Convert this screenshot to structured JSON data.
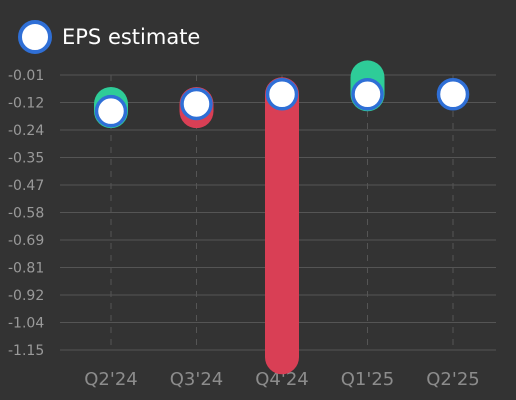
{
  "chart_data": {
    "type": "dot-range",
    "legend": {
      "label": "EPS estimate",
      "placement": "top-left"
    },
    "y_ticks": [
      "-0.01",
      "-0.12",
      "-0.24",
      "-0.35",
      "-0.47",
      "-0.58",
      "-0.69",
      "-0.81",
      "-0.92",
      "-1.04",
      "-1.15"
    ],
    "ylim": [
      -1.15,
      -0.01
    ],
    "categories": [
      "Q2'24",
      "Q3'24",
      "Q4'24",
      "Q1'25",
      "Q2'25"
    ],
    "series": [
      {
        "name": "EPS estimate",
        "values": [
          -0.16,
          -0.13,
          -0.09,
          -0.09,
          -0.09
        ]
      }
    ],
    "actuals": [
      -0.13,
      -0.16,
      -1.18,
      -0.02,
      null
    ],
    "grid": true,
    "colors": {
      "background": "#333333",
      "grid": "#555555",
      "tick_text": "#9a9a9a",
      "x_label_text": "#8c8c8c",
      "beat": "#2ecc98",
      "miss": "#d93f55",
      "marker_fill": "#ffffff",
      "marker_stroke": "#2f6fd6"
    }
  }
}
